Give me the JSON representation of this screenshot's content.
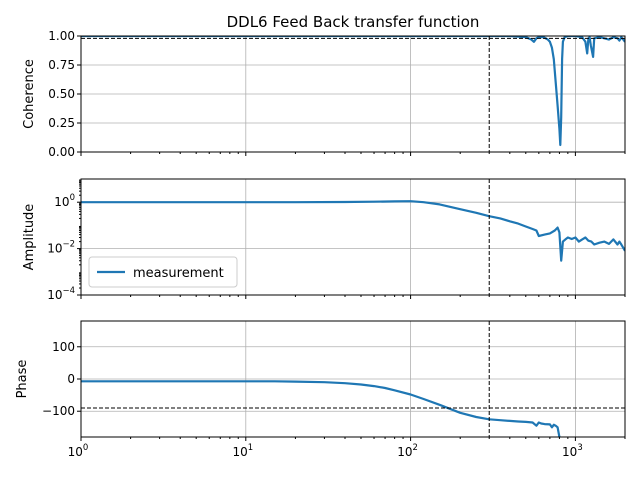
{
  "chart_data": {
    "type": "line",
    "title": "DDL6 Feed Back transfer function",
    "xscale": "log",
    "xlim": [
      1,
      2000
    ],
    "x_ticks": [
      {
        "value": 1,
        "base": "10",
        "exp": "0"
      },
      {
        "value": 10,
        "base": "10",
        "exp": "1"
      },
      {
        "value": 100,
        "base": "10",
        "exp": "2"
      },
      {
        "value": 1000,
        "base": "10",
        "exp": "3"
      }
    ],
    "vertical_reference_x": 300,
    "grid": true,
    "color": "#1f77b4",
    "panels": [
      {
        "id": "coherence",
        "ylabel": "Coherence",
        "yscale": "linear",
        "ylim": [
          0,
          1
        ],
        "y_ticks": [
          {
            "value": 0,
            "label": "0.00"
          },
          {
            "value": 0.25,
            "label": "0.25"
          },
          {
            "value": 0.5,
            "label": "0.50"
          },
          {
            "value": 0.75,
            "label": "0.75"
          },
          {
            "value": 1,
            "label": "1.00"
          }
        ],
        "horizontal_reference_y": 0.98,
        "series": [
          {
            "x": [
              1,
              2,
              5,
              10,
              20,
              50,
              100,
              200,
              300,
              400,
              500,
              540,
              560,
              580,
              600,
              640,
              680,
              700,
              720,
              740,
              760,
              780,
              800,
              810,
              820,
              830,
              840,
              860,
              900,
              1000,
              1100,
              1150,
              1180,
              1200,
              1220,
              1240,
              1280,
              1300,
              1400,
              1500,
              1600,
              1700,
              1800,
              1850,
              1900,
              1950,
              2000
            ],
            "y": [
              1.0,
              1.0,
              1.0,
              1.0,
              1.0,
              1.0,
              1.0,
              1.0,
              1.0,
              1.0,
              0.99,
              0.97,
              0.95,
              0.98,
              0.99,
              0.99,
              0.97,
              0.95,
              0.9,
              0.8,
              0.6,
              0.4,
              0.2,
              0.06,
              0.3,
              0.8,
              0.95,
              0.99,
              1.0,
              1.0,
              0.99,
              0.95,
              0.85,
              0.98,
              0.99,
              0.92,
              0.82,
              0.98,
              0.99,
              0.98,
              0.97,
              0.99,
              0.98,
              0.96,
              0.99,
              0.97,
              0.95
            ]
          }
        ]
      },
      {
        "id": "amplitude",
        "ylabel": "Amplitude",
        "yscale": "log",
        "ylim": [
          0.0001,
          10
        ],
        "y_ticks": [
          {
            "value": 0.0001,
            "base": "10",
            "exp": "−4"
          },
          {
            "value": 0.01,
            "base": "10",
            "exp": "−2"
          },
          {
            "value": 1,
            "base": "10",
            "exp": "0"
          }
        ],
        "legend": {
          "labels": [
            "measurement"
          ],
          "placement": "lower-left"
        },
        "series": [
          {
            "name": "measurement",
            "x": [
              1,
              2,
              5,
              10,
              20,
              40,
              60,
              80,
              100,
              120,
              150,
              200,
              250,
              300,
              350,
              400,
              450,
              500,
              550,
              580,
              600,
              650,
              700,
              750,
              780,
              800,
              820,
              840,
              870,
              900,
              950,
              1000,
              1050,
              1100,
              1150,
              1200,
              1250,
              1300,
              1400,
              1500,
              1600,
              1700,
              1800,
              1850,
              1900,
              2000
            ],
            "y": [
              1.0,
              1.0,
              1.0,
              1.0,
              1.0,
              1.02,
              1.05,
              1.08,
              1.1,
              1.0,
              0.8,
              0.5,
              0.35,
              0.25,
              0.2,
              0.15,
              0.12,
              0.09,
              0.07,
              0.06,
              0.035,
              0.04,
              0.045,
              0.06,
              0.08,
              0.05,
              0.003,
              0.02,
              0.025,
              0.03,
              0.026,
              0.03,
              0.02,
              0.025,
              0.03,
              0.022,
              0.02,
              0.015,
              0.018,
              0.02,
              0.016,
              0.025,
              0.015,
              0.02,
              0.015,
              0.008
            ]
          }
        ]
      },
      {
        "id": "phase",
        "ylabel": "Phase",
        "yscale": "linear",
        "ylim": [
          -180,
          180
        ],
        "y_ticks": [
          {
            "value": -100,
            "label": "−100"
          },
          {
            "value": 0,
            "label": "0"
          },
          {
            "value": 100,
            "label": "100"
          }
        ],
        "horizontal_reference_y": -90,
        "series": [
          {
            "x": [
              1,
              2,
              5,
              10,
              15,
              20,
              30,
              40,
              50,
              60,
              70,
              80,
              100,
              120,
              150,
              200,
              250,
              300,
              350,
              400,
              450,
              500,
              550,
              580,
              600,
              620,
              650,
              700,
              720,
              740,
              760,
              780,
              800
            ],
            "y": [
              -7,
              -7,
              -7,
              -7,
              -7,
              -8,
              -10,
              -13,
              -17,
              -22,
              -28,
              -35,
              -48,
              -62,
              -80,
              -105,
              -118,
              -125,
              -128,
              -130,
              -132,
              -133,
              -135,
              -145,
              -135,
              -138,
              -140,
              -141,
              -150,
              -142,
              -145,
              -150,
              -180
            ]
          }
        ]
      }
    ]
  }
}
